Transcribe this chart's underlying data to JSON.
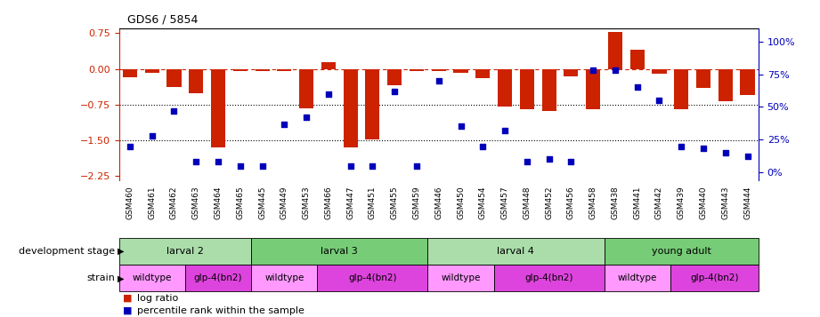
{
  "title": "GDS6 / 5854",
  "samples": [
    "GSM460",
    "GSM461",
    "GSM462",
    "GSM463",
    "GSM464",
    "GSM465",
    "GSM445",
    "GSM449",
    "GSM453",
    "GSM466",
    "GSM447",
    "GSM451",
    "GSM455",
    "GSM459",
    "GSM446",
    "GSM450",
    "GSM454",
    "GSM457",
    "GSM448",
    "GSM452",
    "GSM456",
    "GSM458",
    "GSM438",
    "GSM441",
    "GSM442",
    "GSM439",
    "GSM440",
    "GSM443",
    "GSM444"
  ],
  "log_ratio": [
    -0.18,
    -0.08,
    -0.38,
    -0.52,
    -1.65,
    -0.04,
    -0.04,
    -0.04,
    -0.82,
    0.15,
    -1.65,
    -1.48,
    -0.35,
    -0.04,
    -0.04,
    -0.08,
    -0.2,
    -0.8,
    -0.85,
    -0.88,
    -0.15,
    -0.85,
    0.78,
    0.4,
    -0.1,
    -0.85,
    -0.4,
    -0.68,
    -0.55
  ],
  "percentile": [
    20,
    28,
    47,
    8,
    8,
    5,
    5,
    37,
    42,
    60,
    5,
    5,
    62,
    5,
    70,
    35,
    20,
    32,
    8,
    10,
    8,
    78,
    78,
    65,
    55,
    20,
    18,
    15,
    12
  ],
  "ylim_left": [
    -2.35,
    0.85
  ],
  "ylim_right": [
    -6.47,
    110
  ],
  "yticks_left": [
    0.75,
    0.0,
    -0.75,
    -1.5,
    -2.25
  ],
  "yticks_right": [
    0,
    25,
    50,
    75,
    100
  ],
  "dev_stages": [
    {
      "label": "larval 2",
      "start": 0,
      "end": 6,
      "color": "#AADDAA"
    },
    {
      "label": "larval 3",
      "start": 6,
      "end": 14,
      "color": "#77CC77"
    },
    {
      "label": "larval 4",
      "start": 14,
      "end": 22,
      "color": "#AADDAA"
    },
    {
      "label": "young adult",
      "start": 22,
      "end": 29,
      "color": "#77CC77"
    }
  ],
  "strains": [
    {
      "label": "wildtype",
      "start": 0,
      "end": 3,
      "color": "#FF99FF"
    },
    {
      "label": "glp-4(bn2)",
      "start": 3,
      "end": 6,
      "color": "#DD44DD"
    },
    {
      "label": "wildtype",
      "start": 6,
      "end": 9,
      "color": "#FF99FF"
    },
    {
      "label": "glp-4(bn2)",
      "start": 9,
      "end": 14,
      "color": "#DD44DD"
    },
    {
      "label": "wildtype",
      "start": 14,
      "end": 17,
      "color": "#FF99FF"
    },
    {
      "label": "glp-4(bn2)",
      "start": 17,
      "end": 22,
      "color": "#DD44DD"
    },
    {
      "label": "wildtype",
      "start": 22,
      "end": 25,
      "color": "#FF99FF"
    },
    {
      "label": "glp-4(bn2)",
      "start": 25,
      "end": 29,
      "color": "#DD44DD"
    }
  ],
  "bar_color": "#CC2200",
  "dot_color": "#0000BB",
  "hline_color": "#CC2200",
  "dotline_color": "#000000",
  "background_color": "#ffffff",
  "fig_width": 9.21,
  "fig_height": 3.57
}
